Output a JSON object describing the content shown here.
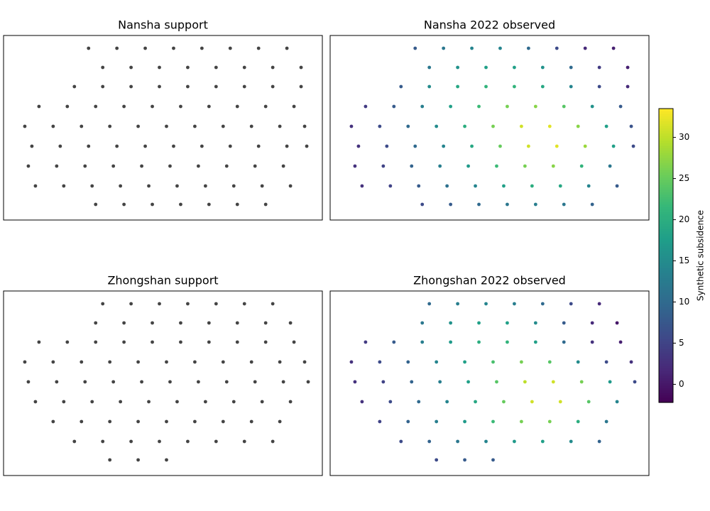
{
  "chart_data": [
    {
      "type": "scatter",
      "title": "Nansha support",
      "color": "#444444",
      "xlim": [
        0,
        450
      ],
      "ylim": [
        0,
        260
      ],
      "x": [
        120,
        160,
        200,
        240,
        280,
        320,
        360,
        400,
        140,
        180,
        220,
        260,
        300,
        340,
        380,
        420,
        100,
        140,
        180,
        220,
        260,
        300,
        340,
        380,
        420,
        50,
        90,
        130,
        170,
        210,
        250,
        290,
        330,
        370,
        410,
        30,
        70,
        110,
        150,
        190,
        230,
        270,
        310,
        350,
        390,
        425,
        40,
        80,
        120,
        160,
        200,
        240,
        280,
        320,
        360,
        400,
        428,
        35,
        75,
        115,
        155,
        195,
        235,
        275,
        315,
        355,
        395,
        45,
        85,
        125,
        165,
        205,
        245,
        285,
        325,
        365,
        405,
        130,
        170,
        210,
        250,
        290,
        330,
        370
      ],
      "y": [
        242,
        242,
        242,
        242,
        242,
        242,
        242,
        242,
        215,
        215,
        215,
        215,
        215,
        215,
        215,
        215,
        188,
        188,
        188,
        188,
        188,
        188,
        188,
        188,
        188,
        160,
        160,
        160,
        160,
        160,
        160,
        160,
        160,
        160,
        160,
        132,
        132,
        132,
        132,
        132,
        132,
        132,
        132,
        132,
        132,
        132,
        104,
        104,
        104,
        104,
        104,
        104,
        104,
        104,
        104,
        104,
        104,
        76,
        76,
        76,
        76,
        76,
        76,
        76,
        76,
        76,
        76,
        48,
        48,
        48,
        48,
        48,
        48,
        48,
        48,
        48,
        48,
        22,
        22,
        22,
        22,
        22,
        22,
        22
      ]
    },
    {
      "type": "scatter",
      "title": "Nansha 2022 observed",
      "xlim": [
        0,
        450
      ],
      "ylim": [
        0,
        260
      ],
      "x": [
        120,
        160,
        200,
        240,
        280,
        320,
        360,
        400,
        140,
        180,
        220,
        260,
        300,
        340,
        380,
        420,
        100,
        140,
        180,
        220,
        260,
        300,
        340,
        380,
        420,
        50,
        90,
        130,
        170,
        210,
        250,
        290,
        330,
        370,
        410,
        30,
        70,
        110,
        150,
        190,
        230,
        270,
        310,
        350,
        390,
        425,
        40,
        80,
        120,
        160,
        200,
        240,
        280,
        320,
        360,
        400,
        428,
        35,
        75,
        115,
        155,
        195,
        235,
        275,
        315,
        355,
        395,
        45,
        85,
        125,
        165,
        205,
        245,
        285,
        325,
        365,
        405,
        130,
        170,
        210,
        250,
        290,
        330,
        370
      ],
      "y": [
        242,
        242,
        242,
        242,
        242,
        242,
        242,
        242,
        215,
        215,
        215,
        215,
        215,
        215,
        215,
        215,
        188,
        188,
        188,
        188,
        188,
        188,
        188,
        188,
        188,
        160,
        160,
        160,
        160,
        160,
        160,
        160,
        160,
        160,
        160,
        132,
        132,
        132,
        132,
        132,
        132,
        132,
        132,
        132,
        132,
        132,
        104,
        104,
        104,
        104,
        104,
        104,
        104,
        104,
        104,
        104,
        104,
        76,
        76,
        76,
        76,
        76,
        76,
        76,
        76,
        76,
        76,
        48,
        48,
        48,
        48,
        48,
        48,
        48,
        48,
        48,
        48,
        22,
        22,
        22,
        22,
        22,
        22,
        22
      ],
      "values": [
        8,
        12,
        14,
        14,
        10,
        6,
        2,
        1,
        12,
        16,
        18,
        18,
        16,
        10,
        4,
        1,
        8,
        15,
        19,
        21,
        21,
        19,
        14,
        6,
        2,
        4,
        8,
        13,
        18,
        22,
        26,
        27,
        24,
        16,
        8,
        3,
        6,
        10,
        15,
        20,
        26,
        31,
        32,
        27,
        18,
        7,
        3,
        6,
        10,
        14,
        19,
        25,
        31,
        32,
        28,
        18,
        6,
        3,
        5,
        9,
        13,
        17,
        22,
        26,
        27,
        21,
        12,
        3,
        5,
        8,
        11,
        14,
        18,
        20,
        19,
        14,
        8,
        6,
        8,
        10,
        12,
        13,
        12,
        9
      ]
    },
    {
      "type": "scatter",
      "title": "Zhongshan support",
      "color": "#444444",
      "xlim": [
        0,
        450
      ],
      "ylim": [
        0,
        260
      ],
      "x": [
        140,
        180,
        220,
        260,
        300,
        340,
        380,
        130,
        170,
        210,
        250,
        290,
        330,
        370,
        405,
        50,
        90,
        130,
        170,
        210,
        250,
        290,
        330,
        370,
        410,
        30,
        70,
        110,
        150,
        190,
        230,
        270,
        310,
        350,
        390,
        425,
        35,
        75,
        115,
        155,
        195,
        235,
        275,
        315,
        355,
        395,
        430,
        45,
        85,
        125,
        165,
        205,
        245,
        285,
        325,
        365,
        405,
        70,
        110,
        150,
        190,
        230,
        270,
        310,
        350,
        390,
        100,
        140,
        180,
        220,
        260,
        300,
        340,
        380,
        150,
        190,
        230
      ],
      "y": [
        242,
        242,
        242,
        242,
        242,
        242,
        242,
        215,
        215,
        215,
        215,
        215,
        215,
        215,
        215,
        188,
        188,
        188,
        188,
        188,
        188,
        188,
        188,
        188,
        188,
        160,
        160,
        160,
        160,
        160,
        160,
        160,
        160,
        160,
        160,
        160,
        132,
        132,
        132,
        132,
        132,
        132,
        132,
        132,
        132,
        132,
        132,
        104,
        104,
        104,
        104,
        104,
        104,
        104,
        104,
        104,
        104,
        76,
        76,
        76,
        76,
        76,
        76,
        76,
        76,
        76,
        48,
        48,
        48,
        48,
        48,
        48,
        48,
        48,
        22,
        22,
        22
      ]
    },
    {
      "type": "scatter",
      "title": "Zhongshan 2022 observed",
      "xlim": [
        0,
        450
      ],
      "ylim": [
        0,
        260
      ],
      "x": [
        140,
        180,
        220,
        260,
        300,
        340,
        380,
        130,
        170,
        210,
        250,
        290,
        330,
        370,
        405,
        50,
        90,
        130,
        170,
        210,
        250,
        290,
        330,
        370,
        410,
        30,
        70,
        110,
        150,
        190,
        230,
        270,
        310,
        350,
        390,
        425,
        35,
        75,
        115,
        155,
        195,
        235,
        275,
        315,
        355,
        395,
        430,
        45,
        85,
        125,
        165,
        205,
        245,
        285,
        325,
        365,
        405,
        70,
        110,
        150,
        190,
        230,
        270,
        310,
        350,
        390,
        100,
        140,
        180,
        220,
        260,
        300,
        340,
        380,
        150,
        190,
        230
      ],
      "y": [
        242,
        242,
        242,
        242,
        242,
        242,
        242,
        215,
        215,
        215,
        215,
        215,
        215,
        215,
        215,
        188,
        188,
        188,
        188,
        188,
        188,
        188,
        188,
        188,
        188,
        160,
        160,
        160,
        160,
        160,
        160,
        160,
        160,
        160,
        160,
        160,
        132,
        132,
        132,
        132,
        132,
        132,
        132,
        132,
        132,
        132,
        132,
        104,
        104,
        104,
        104,
        104,
        104,
        104,
        104,
        104,
        104,
        76,
        76,
        76,
        76,
        76,
        76,
        76,
        76,
        76,
        48,
        48,
        48,
        48,
        48,
        48,
        48,
        48,
        22,
        22,
        22
      ],
      "values": [
        10,
        13,
        14,
        13,
        10,
        6,
        2,
        12,
        16,
        18,
        18,
        15,
        8,
        2,
        0,
        4,
        8,
        13,
        17,
        20,
        21,
        18,
        10,
        3,
        1,
        3,
        6,
        9,
        14,
        18,
        23,
        26,
        24,
        15,
        6,
        3,
        3,
        5,
        9,
        13,
        18,
        24,
        30,
        31,
        26,
        17,
        6,
        3,
        6,
        10,
        14,
        19,
        25,
        31,
        31,
        24,
        14,
        5,
        9,
        13,
        17,
        22,
        26,
        26,
        20,
        12,
        6,
        9,
        12,
        14,
        17,
        18,
        15,
        9,
        6,
        8,
        8
      ]
    },
    {
      "type": "colorbar",
      "label": "Synthetic subsidence",
      "ylim": [
        -2.2,
        33.5
      ],
      "yticks": [
        0,
        5,
        10,
        15,
        20,
        25,
        30
      ],
      "colors": [
        "#440154",
        "#482878",
        "#3e4989",
        "#31688e",
        "#26828e",
        "#1f9e89",
        "#35b779",
        "#6ece58",
        "#b5de2b",
        "#fde725"
      ]
    }
  ]
}
